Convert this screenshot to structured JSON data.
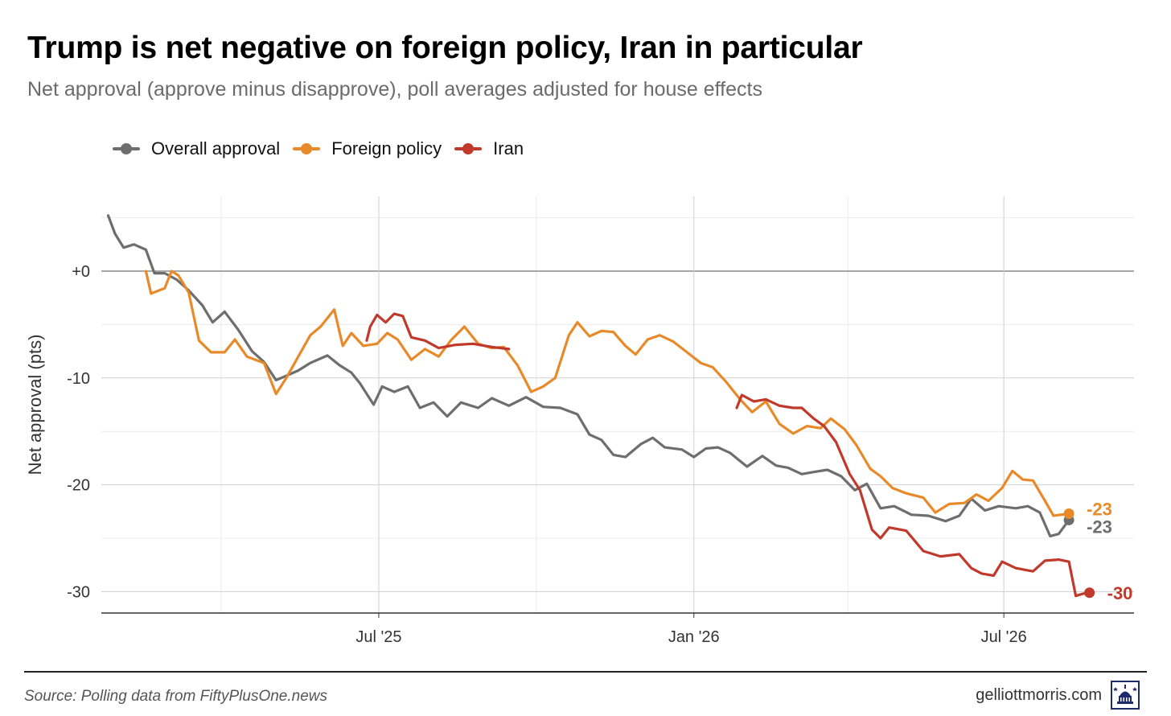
{
  "chart_data": {
    "type": "line",
    "title": "Trump is net negative on foreign policy, Iran in particular",
    "subtitle": "Net approval (approve minus disapprove), poll averages adjusted for house effects",
    "ylabel": "Net approval (pts)",
    "xlabel": "",
    "x_ticks": [
      "Jul '25",
      "Jan '26",
      "Jul '26"
    ],
    "y_ticks": [
      "+0",
      "-10",
      "-20",
      "-30"
    ],
    "ylim": [
      -32,
      7
    ],
    "xlim": [
      "2025-01-20",
      "2026-09-15"
    ],
    "grid": true,
    "legend_position": "top-left",
    "series": [
      {
        "name": "Overall approval",
        "color": "#6e6e6e",
        "end_label": "-23",
        "points": [
          [
            "2025-01-24",
            5.2
          ],
          [
            "2025-01-28",
            3.5
          ],
          [
            "2025-02-02",
            2.2
          ],
          [
            "2025-02-08",
            2.5
          ],
          [
            "2025-02-15",
            2.0
          ],
          [
            "2025-02-20",
            -0.2
          ],
          [
            "2025-02-26",
            -0.2
          ],
          [
            "2025-03-05",
            -0.8
          ],
          [
            "2025-03-12",
            -1.8
          ],
          [
            "2025-03-20",
            -3.2
          ],
          [
            "2025-03-26",
            -4.8
          ],
          [
            "2025-04-02",
            -3.8
          ],
          [
            "2025-04-10",
            -5.5
          ],
          [
            "2025-04-18",
            -7.5
          ],
          [
            "2025-04-25",
            -8.5
          ],
          [
            "2025-05-02",
            -10.2
          ],
          [
            "2025-05-08",
            -9.8
          ],
          [
            "2025-05-15",
            -9.3
          ],
          [
            "2025-05-22",
            -8.6
          ],
          [
            "2025-06-01",
            -7.9
          ],
          [
            "2025-06-08",
            -8.8
          ],
          [
            "2025-06-15",
            -9.5
          ],
          [
            "2025-06-20",
            -10.5
          ],
          [
            "2025-06-28",
            -12.5
          ],
          [
            "2025-07-03",
            -10.8
          ],
          [
            "2025-07-10",
            -11.3
          ],
          [
            "2025-07-18",
            -10.8
          ],
          [
            "2025-07-25",
            -12.8
          ],
          [
            "2025-08-02",
            -12.3
          ],
          [
            "2025-08-10",
            -13.6
          ],
          [
            "2025-08-18",
            -12.3
          ],
          [
            "2025-08-28",
            -12.8
          ],
          [
            "2025-09-05",
            -11.9
          ],
          [
            "2025-09-15",
            -12.6
          ],
          [
            "2025-09-25",
            -11.8
          ],
          [
            "2025-10-05",
            -12.7
          ],
          [
            "2025-10-15",
            -12.8
          ],
          [
            "2025-10-25",
            -13.4
          ],
          [
            "2025-11-01",
            -15.3
          ],
          [
            "2025-11-08",
            -15.8
          ],
          [
            "2025-11-15",
            -17.2
          ],
          [
            "2025-11-22",
            -17.4
          ],
          [
            "2025-12-01",
            -16.2
          ],
          [
            "2025-12-08",
            -15.6
          ],
          [
            "2025-12-15",
            -16.5
          ],
          [
            "2025-12-25",
            -16.7
          ],
          [
            "2026-01-01",
            -17.4
          ],
          [
            "2026-01-08",
            -16.6
          ],
          [
            "2026-01-15",
            -16.5
          ],
          [
            "2026-01-22",
            -17.0
          ],
          [
            "2026-02-01",
            -18.3
          ],
          [
            "2026-02-10",
            -17.3
          ],
          [
            "2026-02-18",
            -18.2
          ],
          [
            "2026-02-25",
            -18.4
          ],
          [
            "2026-03-05",
            -19.0
          ],
          [
            "2026-03-12",
            -18.8
          ],
          [
            "2026-03-20",
            -18.6
          ],
          [
            "2026-03-28",
            -19.2
          ],
          [
            "2026-04-05",
            -20.5
          ],
          [
            "2026-04-12",
            -19.9
          ],
          [
            "2026-04-20",
            -22.2
          ],
          [
            "2026-04-28",
            -22.0
          ],
          [
            "2026-05-08",
            -22.8
          ],
          [
            "2026-05-18",
            -22.9
          ],
          [
            "2026-05-28",
            -23.4
          ],
          [
            "2026-06-05",
            -22.9
          ],
          [
            "2026-06-12",
            -21.3
          ],
          [
            "2026-06-20",
            -22.4
          ],
          [
            "2026-06-28",
            -22.0
          ],
          [
            "2026-07-08",
            -22.2
          ],
          [
            "2026-07-15",
            -22.0
          ],
          [
            "2026-07-22",
            -22.6
          ],
          [
            "2026-07-28",
            -24.8
          ],
          [
            "2026-08-02",
            -24.6
          ],
          [
            "2026-08-08",
            -23.3
          ]
        ]
      },
      {
        "name": "Foreign policy",
        "color": "#e98a2a",
        "end_label": "-23",
        "points": [
          [
            "2025-02-15",
            0.0
          ],
          [
            "2025-02-18",
            -2.1
          ],
          [
            "2025-02-26",
            -1.6
          ],
          [
            "2025-03-02",
            0.0
          ],
          [
            "2025-03-06",
            -0.4
          ],
          [
            "2025-03-12",
            -2.0
          ],
          [
            "2025-03-18",
            -6.5
          ],
          [
            "2025-03-25",
            -7.6
          ],
          [
            "2025-04-02",
            -7.6
          ],
          [
            "2025-04-08",
            -6.4
          ],
          [
            "2025-04-15",
            -8.0
          ],
          [
            "2025-04-25",
            -8.6
          ],
          [
            "2025-05-02",
            -11.5
          ],
          [
            "2025-05-08",
            -10.0
          ],
          [
            "2025-05-15",
            -8.0
          ],
          [
            "2025-05-22",
            -6.0
          ],
          [
            "2025-05-28",
            -5.2
          ],
          [
            "2025-06-05",
            -3.6
          ],
          [
            "2025-06-10",
            -7.0
          ],
          [
            "2025-06-15",
            -5.8
          ],
          [
            "2025-06-22",
            -7.0
          ],
          [
            "2025-06-30",
            -6.8
          ],
          [
            "2025-07-06",
            -5.8
          ],
          [
            "2025-07-12",
            -6.4
          ],
          [
            "2025-07-20",
            -8.3
          ],
          [
            "2025-07-28",
            -7.3
          ],
          [
            "2025-08-05",
            -8.0
          ],
          [
            "2025-08-12",
            -6.5
          ],
          [
            "2025-08-20",
            -5.2
          ],
          [
            "2025-08-28",
            -6.8
          ],
          [
            "2025-09-05",
            -7.2
          ],
          [
            "2025-09-12",
            -7.1
          ],
          [
            "2025-09-20",
            -8.8
          ],
          [
            "2025-09-28",
            -11.3
          ],
          [
            "2025-10-05",
            -10.8
          ],
          [
            "2025-10-12",
            -10.0
          ],
          [
            "2025-10-20",
            -6.0
          ],
          [
            "2025-10-25",
            -4.8
          ],
          [
            "2025-11-01",
            -6.1
          ],
          [
            "2025-11-08",
            -5.6
          ],
          [
            "2025-11-15",
            -5.7
          ],
          [
            "2025-11-22",
            -7.0
          ],
          [
            "2025-11-28",
            -7.8
          ],
          [
            "2025-12-05",
            -6.4
          ],
          [
            "2025-12-12",
            -6.0
          ],
          [
            "2025-12-20",
            -6.6
          ],
          [
            "2025-12-28",
            -7.6
          ],
          [
            "2026-01-05",
            -8.6
          ],
          [
            "2026-01-12",
            -9.0
          ],
          [
            "2026-01-20",
            -10.4
          ],
          [
            "2026-01-28",
            -12.0
          ],
          [
            "2026-02-04",
            -13.2
          ],
          [
            "2026-02-12",
            -12.2
          ],
          [
            "2026-02-20",
            -14.3
          ],
          [
            "2026-02-28",
            -15.2
          ],
          [
            "2026-03-08",
            -14.5
          ],
          [
            "2026-03-16",
            -14.7
          ],
          [
            "2026-03-22",
            -13.8
          ],
          [
            "2026-03-30",
            -14.8
          ],
          [
            "2026-04-06",
            -16.3
          ],
          [
            "2026-04-14",
            -18.5
          ],
          [
            "2026-04-20",
            -19.2
          ],
          [
            "2026-04-27",
            -20.3
          ],
          [
            "2026-05-05",
            -20.8
          ],
          [
            "2026-05-15",
            -21.2
          ],
          [
            "2026-05-22",
            -22.6
          ],
          [
            "2026-05-30",
            -21.8
          ],
          [
            "2026-06-08",
            -21.7
          ],
          [
            "2026-06-15",
            -20.9
          ],
          [
            "2026-06-22",
            -21.5
          ],
          [
            "2026-06-30",
            -20.3
          ],
          [
            "2026-07-06",
            -18.7
          ],
          [
            "2026-07-12",
            -19.5
          ],
          [
            "2026-07-18",
            -19.6
          ],
          [
            "2026-07-25",
            -21.5
          ],
          [
            "2026-07-30",
            -22.9
          ],
          [
            "2026-08-08",
            -22.7
          ]
        ]
      },
      {
        "name": "Iran",
        "color": "#c0392b",
        "end_label": "-30",
        "segments": [
          [
            [
              "2025-06-24",
              -6.5
            ],
            [
              "2025-06-26",
              -5.2
            ],
            [
              "2025-06-30",
              -4.1
            ],
            [
              "2025-07-05",
              -4.8
            ],
            [
              "2025-07-10",
              -4.0
            ],
            [
              "2025-07-15",
              -4.2
            ],
            [
              "2025-07-20",
              -6.2
            ],
            [
              "2025-07-28",
              -6.5
            ],
            [
              "2025-08-05",
              -7.2
            ],
            [
              "2025-08-15",
              -6.9
            ],
            [
              "2025-08-25",
              -6.8
            ],
            [
              "2025-09-05",
              -7.1
            ],
            [
              "2025-09-15",
              -7.3
            ]
          ],
          [
            [
              "2026-01-26",
              -12.8
            ],
            [
              "2026-01-29",
              -11.6
            ],
            [
              "2026-02-05",
              -12.2
            ],
            [
              "2026-02-12",
              -12.0
            ],
            [
              "2026-02-20",
              -12.6
            ],
            [
              "2026-02-28",
              -12.8
            ],
            [
              "2026-03-05",
              -12.8
            ],
            [
              "2026-03-12",
              -13.8
            ],
            [
              "2026-03-18",
              -14.5
            ],
            [
              "2026-03-25",
              -16.0
            ],
            [
              "2026-04-02",
              -19.0
            ],
            [
              "2026-04-08",
              -20.5
            ],
            [
              "2026-04-15",
              -24.2
            ],
            [
              "2026-04-20",
              -25.0
            ],
            [
              "2026-04-25",
              -24.0
            ],
            [
              "2026-05-05",
              -24.3
            ],
            [
              "2026-05-15",
              -26.2
            ],
            [
              "2026-05-25",
              -26.7
            ],
            [
              "2026-06-05",
              -26.5
            ],
            [
              "2026-06-12",
              -27.8
            ],
            [
              "2026-06-18",
              -28.3
            ],
            [
              "2026-06-25",
              -28.5
            ],
            [
              "2026-06-30",
              -27.2
            ],
            [
              "2026-07-08",
              -27.8
            ],
            [
              "2026-07-18",
              -28.1
            ],
            [
              "2026-07-25",
              -27.1
            ],
            [
              "2026-08-02",
              -27.0
            ],
            [
              "2026-08-08",
              -27.2
            ],
            [
              "2026-08-12",
              -30.4
            ],
            [
              "2026-08-16",
              -30.2
            ],
            [
              "2026-08-20",
              -30.1
            ]
          ]
        ]
      }
    ]
  },
  "footer": {
    "source": "Source: Polling data from FiftyPlusOne.news",
    "credit": "gelliottmorris.com"
  },
  "logo_icon": "capitol-dome-icon"
}
